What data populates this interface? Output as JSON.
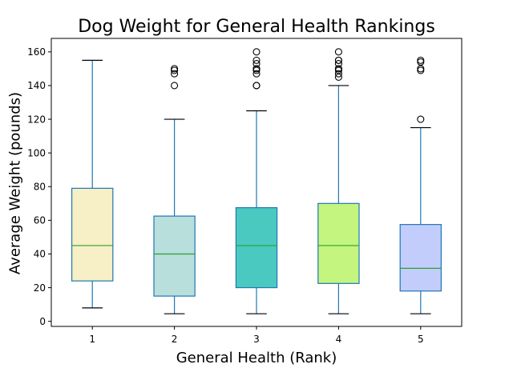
{
  "chart_data": {
    "type": "box",
    "title": "Dog Weight for General Health Rankings",
    "xlabel": "General Health (Rank)",
    "ylabel": "Average Weight (pounds)",
    "ylim": [
      -3,
      168
    ],
    "yticks": [
      0,
      20,
      40,
      60,
      80,
      100,
      120,
      140,
      160
    ],
    "grid": false,
    "categories": [
      "1",
      "2",
      "3",
      "4",
      "5"
    ],
    "series": [
      {
        "category": "1",
        "color": "#f7efc6",
        "whisker_low": 8,
        "q1": 24,
        "median": 45,
        "q3": 79,
        "whisker_high": 155,
        "outliers": []
      },
      {
        "category": "2",
        "color": "#b9dfdc",
        "whisker_low": 4.5,
        "q1": 15,
        "median": 40,
        "q3": 62.5,
        "whisker_high": 120,
        "outliers": [
          140,
          147,
          149,
          150
        ]
      },
      {
        "category": "3",
        "color": "#4ac9c0",
        "whisker_low": 4.5,
        "q1": 20,
        "median": 45,
        "q3": 67.5,
        "whisker_high": 125,
        "outliers": [
          140,
          140,
          147,
          149,
          150,
          150,
          153,
          155,
          160
        ]
      },
      {
        "category": "4",
        "color": "#c3f57f",
        "whisker_low": 4.5,
        "q1": 22.5,
        "median": 45,
        "q3": 70,
        "whisker_high": 140,
        "outliers": [
          145,
          147,
          149,
          150,
          150,
          153,
          155,
          155,
          160
        ]
      },
      {
        "category": "5",
        "color": "#c3cdfc",
        "whisker_low": 4.5,
        "q1": 18,
        "median": 31.5,
        "q3": 57.5,
        "whisker_high": 115,
        "outliers": [
          120,
          149,
          150,
          154,
          155
        ]
      }
    ],
    "box_edge_color": "#1f77b4",
    "median_color": "#2ca02c",
    "outlier_marker": "open-circle"
  }
}
